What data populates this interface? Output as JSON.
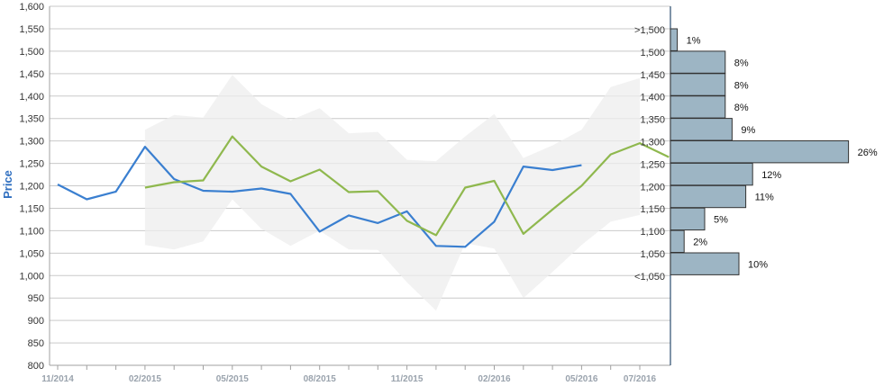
{
  "chart_data": {
    "type": "line",
    "ylabel": "Price",
    "ylim": [
      800,
      1600
    ],
    "y_ticks": [
      "800",
      "850",
      "900",
      "950",
      "1,000",
      "1,050",
      "1,100",
      "1,150",
      "1,200",
      "1,250",
      "1,300",
      "1,350",
      "1,400",
      "1,450",
      "1,500",
      "1,550",
      "1,600"
    ],
    "x_ticks": [
      "11/2014",
      "02/2015",
      "05/2015",
      "08/2015",
      "11/2015",
      "02/2016",
      "05/2016",
      "07/2016"
    ],
    "grid": true,
    "series": [
      {
        "color": "#3a7fd0",
        "points": [
          [
            "2014-11",
            1203
          ],
          [
            "2014-12",
            1170
          ],
          [
            "2015-01",
            1187
          ],
          [
            "2015-02",
            1287
          ],
          [
            "2015-03",
            1215
          ],
          [
            "2015-04",
            1189
          ],
          [
            "2015-05",
            1187
          ],
          [
            "2015-06",
            1194
          ],
          [
            "2015-07",
            1182
          ],
          [
            "2015-08",
            1098
          ],
          [
            "2015-09",
            1134
          ],
          [
            "2015-10",
            1117
          ],
          [
            "2015-11",
            1143
          ],
          [
            "2015-12",
            1066
          ],
          [
            "2016-01",
            1064
          ],
          [
            "2016-02",
            1120
          ],
          [
            "2016-03",
            1243
          ],
          [
            "2016-04",
            1235
          ],
          [
            "2016-05",
            1246
          ]
        ]
      },
      {
        "color": "#8fb84e",
        "points": [
          [
            "2015-02",
            1196
          ],
          [
            "2015-03",
            1208
          ],
          [
            "2015-04",
            1212
          ],
          [
            "2015-05",
            1310
          ],
          [
            "2015-06",
            1243
          ],
          [
            "2015-07",
            1210
          ],
          [
            "2015-08",
            1236
          ],
          [
            "2015-09",
            1186
          ],
          [
            "2015-10",
            1188
          ],
          [
            "2015-11",
            1122
          ],
          [
            "2015-12",
            1090
          ],
          [
            "2016-01",
            1196
          ],
          [
            "2016-02",
            1211
          ],
          [
            "2016-03",
            1093
          ],
          [
            "2016-04",
            1147
          ],
          [
            "2016-05",
            1200
          ],
          [
            "2016-06",
            1270
          ],
          [
            "2016-07",
            1295
          ],
          [
            "2016-08",
            1264
          ]
        ]
      }
    ],
    "band": {
      "color": "#eeeeee",
      "upper": [
        [
          "2015-02",
          1325
        ],
        [
          "2015-03",
          1358
        ],
        [
          "2015-04",
          1352
        ],
        [
          "2015-05",
          1447
        ],
        [
          "2015-06",
          1382
        ],
        [
          "2015-07",
          1346
        ],
        [
          "2015-08",
          1373
        ],
        [
          "2015-09",
          1317
        ],
        [
          "2015-10",
          1320
        ],
        [
          "2015-11",
          1258
        ],
        [
          "2015-12",
          1255
        ],
        [
          "2016-01",
          1310
        ],
        [
          "2016-02",
          1360
        ],
        [
          "2016-03",
          1262
        ],
        [
          "2016-04",
          1290
        ],
        [
          "2016-05",
          1325
        ],
        [
          "2016-06",
          1420
        ],
        [
          "2016-07",
          1440
        ]
      ],
      "lower": [
        [
          "2015-02",
          1068
        ],
        [
          "2015-03",
          1058
        ],
        [
          "2015-04",
          1076
        ],
        [
          "2015-05",
          1170
        ],
        [
          "2015-06",
          1104
        ],
        [
          "2015-07",
          1066
        ],
        [
          "2015-08",
          1100
        ],
        [
          "2015-09",
          1058
        ],
        [
          "2015-10",
          1057
        ],
        [
          "2015-11",
          985
        ],
        [
          "2015-12",
          922
        ],
        [
          "2016-01",
          1072
        ],
        [
          "2016-02",
          1060
        ],
        [
          "2016-03",
          950
        ],
        [
          "2016-04",
          1008
        ],
        [
          "2016-05",
          1068
        ],
        [
          "2016-06",
          1120
        ],
        [
          "2016-07",
          1135
        ]
      ]
    },
    "distribution": {
      "color": "#9db5c4",
      "edge_color": "#333333",
      "bins": [
        {
          "label": ">1,500",
          "percent": 1,
          "percent_label": "1%"
        },
        {
          "label": "1,500",
          "percent": 8,
          "percent_label": "8%"
        },
        {
          "label": "1,450",
          "percent": 8,
          "percent_label": "8%"
        },
        {
          "label": "1,400",
          "percent": 8,
          "percent_label": "8%"
        },
        {
          "label": "1,350",
          "percent": 9,
          "percent_label": "9%"
        },
        {
          "label": "1,300",
          "percent": 26,
          "percent_label": "26%"
        },
        {
          "label": "1,250",
          "percent": 12,
          "percent_label": "12%"
        },
        {
          "label": "1,200",
          "percent": 11,
          "percent_label": "11%"
        },
        {
          "label": "1,150",
          "percent": 5,
          "percent_label": "5%"
        },
        {
          "label": "1,100",
          "percent": 2,
          "percent_label": "2%"
        },
        {
          "label": "1,050",
          "percent": 10,
          "percent_label": "10%"
        },
        {
          "label": "<1,050",
          "percent": 0,
          "percent_label": ""
        }
      ]
    }
  }
}
